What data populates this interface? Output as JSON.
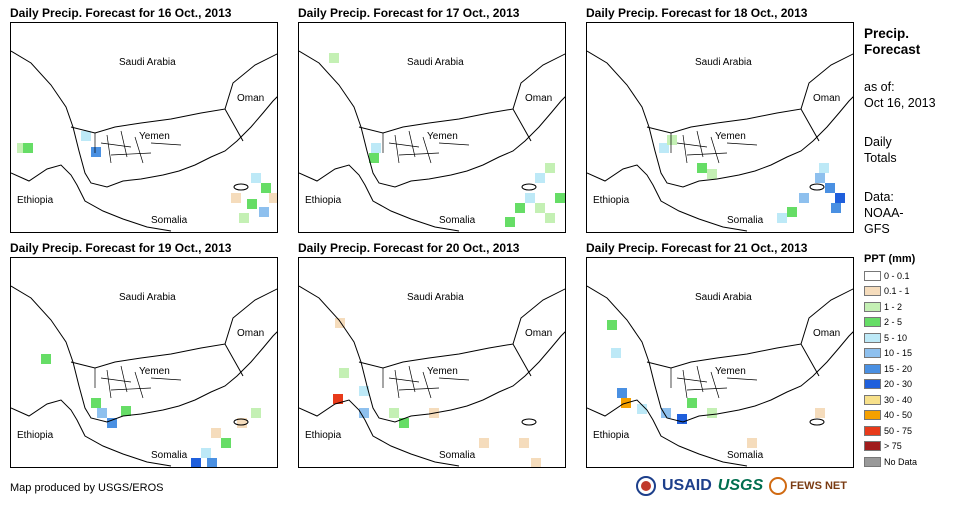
{
  "panels": [
    {
      "title": "Daily Precip. Forecast for 16 Oct., 2013",
      "labels": {
        "saudi": "Saudi Arabia",
        "oman": "Oman",
        "yemen": "Yemen",
        "ethiopia": "Ethiopia",
        "somalia": "Somalia"
      }
    },
    {
      "title": "Daily Precip. Forecast for 17 Oct., 2013",
      "labels": {
        "saudi": "Saudi Arabia",
        "oman": "Oman",
        "yemen": "Yemen",
        "ethiopia": "Ethiopia",
        "somalia": "Somalia"
      }
    },
    {
      "title": "Daily Precip. Forecast for 18 Oct., 2013",
      "labels": {
        "saudi": "Saudi Arabia",
        "oman": "Oman",
        "yemen": "Yemen",
        "ethiopia": "Ethiopia",
        "somalia": "Somalia"
      }
    },
    {
      "title": "Daily Precip. Forecast for 19 Oct., 2013",
      "labels": {
        "saudi": "Saudi Arabia",
        "oman": "Oman",
        "yemen": "Yemen",
        "ethiopia": "Ethiopia",
        "somalia": "Somalia"
      }
    },
    {
      "title": "Daily Precip. Forecast for 20 Oct., 2013",
      "labels": {
        "saudi": "Saudi Arabia",
        "oman": "Oman",
        "yemen": "Yemen",
        "ethiopia": "Ethiopia",
        "somalia": "Somalia"
      }
    },
    {
      "title": "Daily Precip. Forecast for 21 Oct., 2013",
      "labels": {
        "saudi": "Saudi Arabia",
        "oman": "Oman",
        "yemen": "Yemen",
        "ethiopia": "Ethiopia",
        "somalia": "Somalia"
      }
    }
  ],
  "sidebar": {
    "heading_line1": "Precip.",
    "heading_line2": "Forecast",
    "asof_line1": "as of:",
    "asof_line2": "Oct 16, 2013",
    "totals_line1": "Daily",
    "totals_line2": "Totals",
    "data_line1": "Data:",
    "data_line2": "NOAA-",
    "data_line3": "GFS"
  },
  "legend": {
    "title": "PPT (mm)",
    "items": [
      {
        "label": "0 - 0.1",
        "color": "#ffffff"
      },
      {
        "label": "0.1 - 1",
        "color": "#f5dcbc"
      },
      {
        "label": "1 - 2",
        "color": "#c4f0b4"
      },
      {
        "label": "2 - 5",
        "color": "#66dd66"
      },
      {
        "label": "5 - 10",
        "color": "#bde9f7"
      },
      {
        "label": "10 - 15",
        "color": "#8ec0ee"
      },
      {
        "label": "15 - 20",
        "color": "#4a90e2"
      },
      {
        "label": "20 - 30",
        "color": "#1f5fdc"
      },
      {
        "label": "30 - 40",
        "color": "#f7e08a"
      },
      {
        "label": "40 - 50",
        "color": "#f5a000"
      },
      {
        "label": "50 - 75",
        "color": "#e83a1a"
      },
      {
        "label": "> 75",
        "color": "#a01c1c"
      },
      {
        "label": "No Data",
        "color": "#999999"
      }
    ]
  },
  "credit": "Map produced by USGS/EROS",
  "logos": {
    "usaid": "USAID",
    "usgs": "USGS",
    "fews": "FEWS NET"
  }
}
